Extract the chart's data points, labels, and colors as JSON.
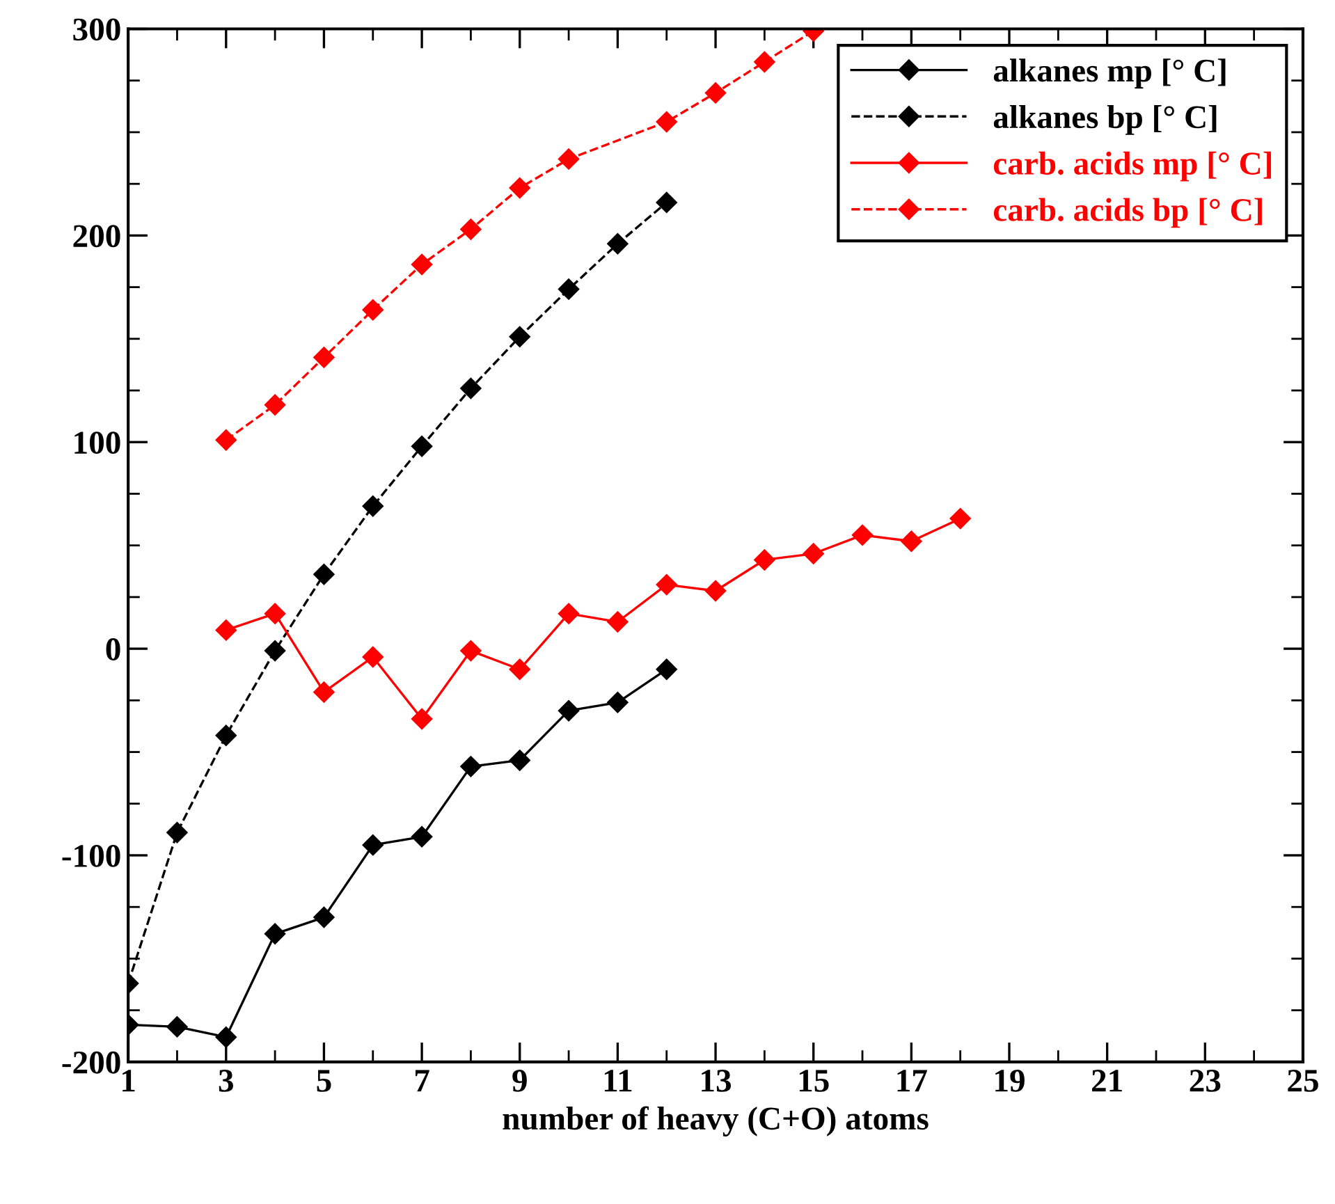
{
  "chart_data": {
    "type": "line",
    "xlabel": "number of heavy (C+O) atoms",
    "xlim": [
      1,
      25
    ],
    "xticks": [
      1,
      3,
      5,
      7,
      9,
      11,
      13,
      15,
      17,
      19,
      21,
      23,
      25
    ],
    "ylim": [
      -200,
      300
    ],
    "yticks": [
      -200,
      -100,
      0,
      100,
      200,
      300
    ],
    "legend": "top right",
    "marker": "diamond",
    "grid": false,
    "series": [
      {
        "name": "alkanes mp [° C]",
        "color": "#000000",
        "line_style": "solid",
        "x": [
          1,
          2,
          3,
          4,
          5,
          6,
          7,
          8,
          9,
          10,
          11,
          12
        ],
        "values": [
          -182,
          -183,
          -188,
          -138,
          -130,
          -95,
          -91,
          -57,
          -54,
          -30,
          -26,
          -10
        ]
      },
      {
        "name": "alkanes bp [° C]",
        "color": "#000000",
        "line_style": "dashed",
        "x": [
          1,
          2,
          3,
          4,
          5,
          6,
          7,
          8,
          9,
          10,
          11,
          12
        ],
        "values": [
          -162,
          -89,
          -42,
          -1,
          36,
          69,
          98,
          126,
          151,
          174,
          196,
          216
        ]
      },
      {
        "name": "carb. acids mp [° C]",
        "color": "#ff0000",
        "line_style": "solid",
        "x": [
          3,
          4,
          5,
          6,
          7,
          8,
          9,
          10,
          11,
          12,
          13,
          14,
          15,
          16,
          17,
          18
        ],
        "values": [
          9,
          17,
          -21,
          -4,
          -34,
          -1,
          -10,
          17,
          13,
          31,
          28,
          43,
          46,
          55,
          52,
          63
        ]
      },
      {
        "name": "carb. acids bp [° C]",
        "color": "#ff0000",
        "line_style": "dashed",
        "x": [
          3,
          4,
          5,
          6,
          7,
          8,
          9,
          10,
          12,
          13,
          14,
          15
        ],
        "values": [
          101,
          118,
          141,
          164,
          186,
          203,
          223,
          237,
          255,
          269,
          284,
          299
        ]
      }
    ]
  }
}
